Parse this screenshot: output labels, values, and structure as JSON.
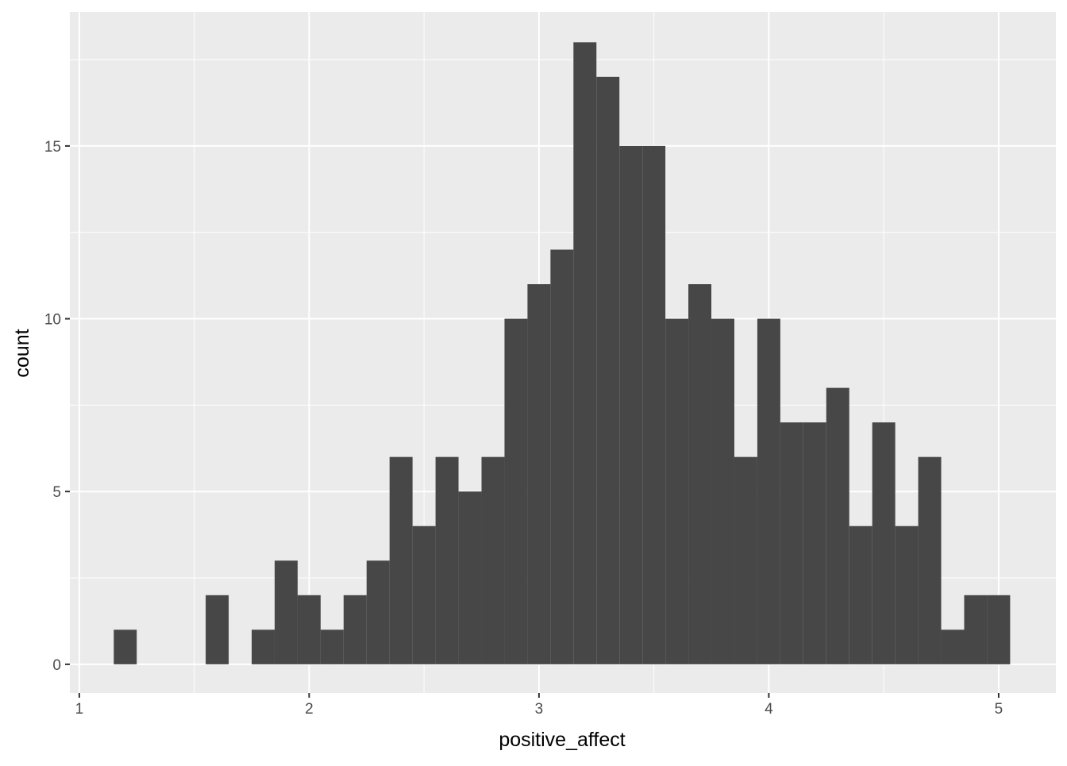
{
  "chart_data": {
    "type": "histogram",
    "x_label": "positive_affect",
    "y_label": "count",
    "bins": [
      1.15,
      1.25,
      1.35,
      1.45,
      1.55,
      1.65,
      1.75,
      1.85,
      1.95,
      2.05,
      2.15,
      2.25,
      2.35,
      2.45,
      2.55,
      2.65,
      2.75,
      2.85,
      2.95,
      3.05,
      3.15,
      3.25,
      3.35,
      3.45,
      3.55,
      3.65,
      3.75,
      3.85,
      3.95,
      4.05,
      4.15,
      4.25,
      4.35,
      4.45,
      4.55,
      4.65,
      4.75,
      4.85,
      4.95,
      5.05
    ],
    "values": [
      1,
      0,
      0,
      0,
      2,
      0,
      1,
      3,
      2,
      1,
      2,
      3,
      6,
      4,
      6,
      5,
      6,
      10,
      11,
      12,
      18,
      17,
      15,
      15,
      10,
      11,
      10,
      6,
      10,
      7,
      7,
      8,
      4,
      7,
      4,
      6,
      1,
      2,
      2
    ],
    "color": "#474747",
    "xlim": [
      0.959,
      5.249
    ],
    "xticks": [
      1,
      2,
      3,
      4,
      5
    ],
    "ylim": [
      -0.83,
      18.88
    ],
    "yticks": [
      0,
      5,
      10,
      15
    ],
    "grid": true
  }
}
